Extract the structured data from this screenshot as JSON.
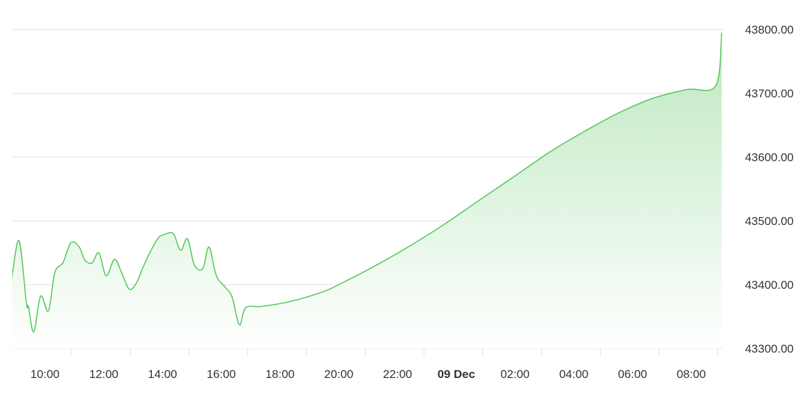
{
  "chart_data": {
    "type": "area",
    "title": "",
    "xlabel": "",
    "ylabel": "",
    "ylim": [
      43300,
      43800
    ],
    "grid": true,
    "legend": "none",
    "y_axis_position": "right",
    "y_ticks": [
      "43300.00",
      "43400.00",
      "43500.00",
      "43600.00",
      "43700.00",
      "43800.00"
    ],
    "x_tick_labels": [
      {
        "label": "10:00",
        "time": "08 Dec 10:00",
        "bold": false
      },
      {
        "label": "12:00",
        "time": "08 Dec 12:00",
        "bold": false
      },
      {
        "label": "14:00",
        "time": "08 Dec 14:00",
        "bold": false
      },
      {
        "label": "16:00",
        "time": "08 Dec 16:00",
        "bold": false
      },
      {
        "label": "18:00",
        "time": "08 Dec 18:00",
        "bold": false
      },
      {
        "label": "20:00",
        "time": "08 Dec 20:00",
        "bold": false
      },
      {
        "label": "22:00",
        "time": "08 Dec 22:00",
        "bold": false
      },
      {
        "label": "09 Dec",
        "time": "09 Dec 00:00",
        "bold": true
      },
      {
        "label": "02:00",
        "time": "09 Dec 02:00",
        "bold": false
      },
      {
        "label": "04:00",
        "time": "09 Dec 04:00",
        "bold": false
      },
      {
        "label": "06:00",
        "time": "09 Dec 06:00",
        "bold": false
      },
      {
        "label": "08:00",
        "time": "09 Dec 08:00",
        "bold": false
      }
    ],
    "colors": {
      "line": "#5ac85e",
      "fill_top": "#bde8c0",
      "fill_bottom": "#ffffff",
      "grid": "#e0e0e0"
    },
    "series": [
      {
        "x": [
          "08 Dec 08:52",
          "08 Dec 09:07",
          "08 Dec 09:22",
          "08 Dec 09:26",
          "08 Dec 09:37",
          "08 Dec 09:51",
          "08 Dec 10:07",
          "08 Dec 10:20",
          "08 Dec 10:37",
          "08 Dec 10:53",
          "08 Dec 11:10",
          "08 Dec 11:21",
          "08 Dec 11:36",
          "08 Dec 11:50",
          "08 Dec 12:05",
          "08 Dec 12:22",
          "08 Dec 12:37",
          "08 Dec 12:52",
          "08 Dec 13:07",
          "08 Dec 13:20",
          "08 Dec 13:34",
          "08 Dec 13:51",
          "08 Dec 14:05",
          "08 Dec 14:22",
          "08 Dec 14:37",
          "08 Dec 14:51",
          "08 Dec 15:05",
          "08 Dec 15:22",
          "08 Dec 15:35",
          "08 Dec 15:50",
          "08 Dec 16:07",
          "08 Dec 16:22",
          "08 Dec 16:37",
          "08 Dec 16:50",
          "08 Dec 17:22",
          "08 Dec 18:17",
          "08 Dec 19:28",
          "08 Dec 20:10",
          "08 Dec 21:20",
          "08 Dec 22:30",
          "08 Dec 23:40",
          "09 Dec 00:50",
          "09 Dec 02:01",
          "09 Dec 03:11",
          "09 Dec 04:21",
          "09 Dec 05:31",
          "09 Dec 06:41",
          "09 Dec 07:52",
          "09 Dec 08:50",
          "09 Dec 09:02"
        ],
        "values": [
          43409,
          43469,
          43371,
          43366,
          43326,
          43382,
          43359,
          43419,
          43435,
          43466,
          43459,
          43439,
          43434,
          43450,
          43414,
          43440,
          43418,
          43393,
          43403,
          43427,
          43450,
          43473,
          43479,
          43480,
          43454,
          43472,
          43431,
          43425,
          43459,
          43414,
          43397,
          43381,
          43337,
          43364,
          43366,
          43373,
          43389,
          43404,
          43432,
          43463,
          43497,
          43534,
          43571,
          43608,
          43640,
          43669,
          43692,
          43706,
          43712,
          43795
        ]
      }
    ]
  }
}
